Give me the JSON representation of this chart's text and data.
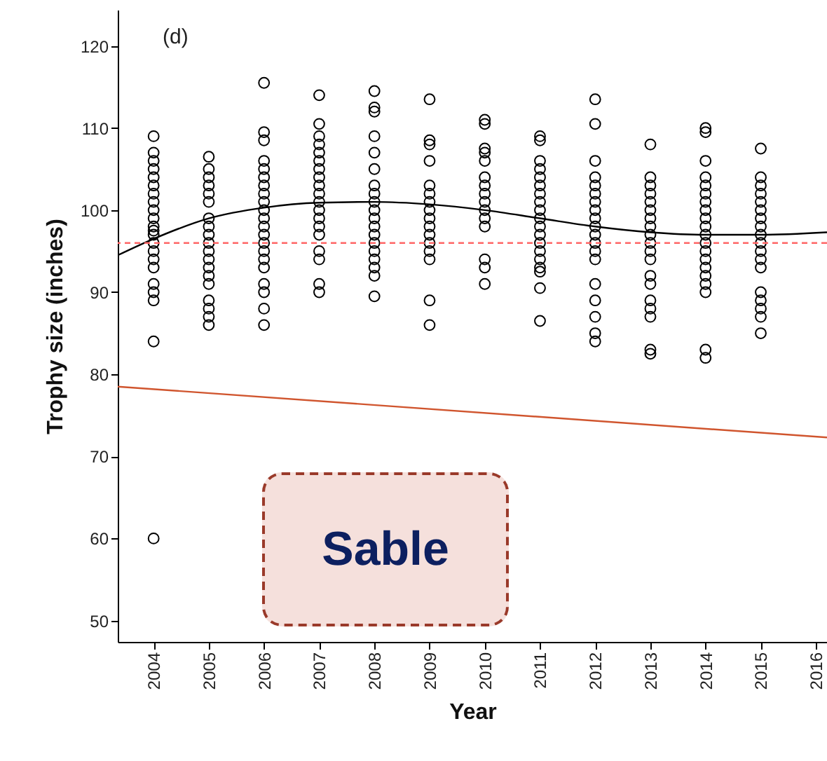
{
  "chart_data": {
    "type": "scatter",
    "xlabel": "Year",
    "ylabel": "Trophy size (inches)",
    "xlim": [
      2003.35,
      2016.2
    ],
    "ylim": [
      47.4,
      124.4
    ],
    "xticks": [
      2004,
      2005,
      2006,
      2007,
      2008,
      2009,
      2010,
      2011,
      2012,
      2013,
      2014,
      2015,
      2016
    ],
    "yticks": [
      50,
      60,
      70,
      80,
      90,
      100,
      110,
      120
    ],
    "grid": false,
    "annotations": [
      "(d)",
      "Sable"
    ],
    "ref_lines": [
      {
        "axis": "y",
        "value": 96,
        "color": "#ff6666",
        "line_style": "dashed"
      }
    ],
    "series": [
      {
        "color": "#000000",
        "marker": "circle",
        "x": [
          2004,
          2004,
          2004,
          2004,
          2004,
          2004,
          2004,
          2004,
          2004,
          2004,
          2004,
          2004,
          2004,
          2004,
          2004,
          2004,
          2004,
          2004,
          2004,
          2004,
          2004,
          2004,
          2005,
          2005,
          2005,
          2005,
          2005,
          2005,
          2005,
          2005,
          2005,
          2005,
          2005,
          2005,
          2005,
          2005,
          2005,
          2005,
          2005,
          2005,
          2005,
          2006,
          2006,
          2006,
          2006,
          2006,
          2006,
          2006,
          2006,
          2006,
          2006,
          2006,
          2006,
          2006,
          2006,
          2006,
          2006,
          2006,
          2006,
          2006,
          2006,
          2006,
          2007,
          2007,
          2007,
          2007,
          2007,
          2007,
          2007,
          2007,
          2007,
          2007,
          2007,
          2007,
          2007,
          2007,
          2007,
          2007,
          2007,
          2007,
          2007,
          2008,
          2008,
          2008,
          2008,
          2008,
          2008,
          2008,
          2008,
          2008,
          2008,
          2008,
          2008,
          2008,
          2008,
          2008,
          2008,
          2008,
          2008,
          2008,
          2009,
          2009,
          2009,
          2009,
          2009,
          2009,
          2009,
          2009,
          2009,
          2009,
          2009,
          2009,
          2009,
          2009,
          2009,
          2009,
          2010,
          2010,
          2010,
          2010,
          2010,
          2010,
          2010,
          2010,
          2010,
          2010,
          2010,
          2010,
          2010,
          2010,
          2010,
          2011,
          2011,
          2011,
          2011,
          2011,
          2011,
          2011,
          2011,
          2011,
          2011,
          2011,
          2011,
          2011,
          2011,
          2011,
          2011,
          2011,
          2011,
          2011,
          2012,
          2012,
          2012,
          2012,
          2012,
          2012,
          2012,
          2012,
          2012,
          2012,
          2012,
          2012,
          2012,
          2012,
          2012,
          2012,
          2012,
          2012,
          2012,
          2013,
          2013,
          2013,
          2013,
          2013,
          2013,
          2013,
          2013,
          2013,
          2013,
          2013,
          2013,
          2013,
          2013,
          2013,
          2013,
          2013,
          2013,
          2013,
          2014,
          2014,
          2014,
          2014,
          2014,
          2014,
          2014,
          2014,
          2014,
          2014,
          2014,
          2014,
          2014,
          2014,
          2014,
          2014,
          2014,
          2014,
          2014,
          2014,
          2015,
          2015,
          2015,
          2015,
          2015,
          2015,
          2015,
          2015,
          2015,
          2015,
          2015,
          2015,
          2015,
          2015,
          2015,
          2015,
          2015,
          2015
        ],
        "values": [
          109,
          107,
          106,
          105,
          104,
          103,
          102,
          101,
          100,
          99,
          98,
          97.5,
          97,
          96,
          95,
          94,
          93,
          91,
          90,
          89,
          84,
          60,
          106.5,
          105,
          104,
          103,
          102,
          101,
          99,
          98,
          97,
          96,
          95,
          94,
          93,
          92,
          91,
          89,
          88,
          87,
          86,
          115.5,
          109.5,
          108.5,
          106,
          105,
          104,
          103,
          102,
          101,
          100,
          99,
          98,
          97,
          96,
          95,
          94,
          93,
          91,
          90,
          88,
          86,
          114,
          110.5,
          109,
          108,
          107,
          106,
          105,
          104,
          103,
          102,
          101,
          100,
          99,
          98,
          97,
          95,
          94,
          91,
          90,
          114.5,
          112.5,
          112,
          109,
          107,
          105,
          103,
          102,
          101,
          100,
          99,
          98,
          97,
          96,
          95,
          94,
          93,
          92,
          89.5,
          113.5,
          108.5,
          108,
          106,
          103,
          102,
          101,
          100,
          99,
          98,
          97,
          96,
          95,
          94,
          89,
          86,
          111,
          110.5,
          107.5,
          107,
          106,
          104,
          103,
          102,
          101,
          100,
          99,
          98,
          94,
          93,
          91,
          109,
          108.5,
          106,
          105,
          104,
          103,
          102,
          101,
          100,
          99,
          98,
          97,
          96,
          95,
          94,
          93,
          92.5,
          90.5,
          86.5,
          113.5,
          110.5,
          106,
          104,
          103,
          102,
          101,
          100,
          99,
          98,
          97,
          96,
          95,
          94,
          91,
          89,
          87,
          85,
          84,
          108,
          104,
          103,
          102,
          101,
          100,
          99,
          98,
          97,
          96,
          95,
          94,
          92,
          91,
          89,
          88,
          87,
          83,
          82.5,
          110,
          109.5,
          106,
          104,
          103,
          102,
          101,
          100,
          99,
          98,
          97,
          96,
          95,
          94,
          93,
          92,
          91,
          90,
          83,
          82,
          107.5,
          104,
          103,
          102,
          101,
          100,
          99,
          98,
          97,
          96,
          95,
          94,
          93,
          90,
          89,
          88,
          87,
          85
        ]
      },
      {
        "type": "line",
        "color": "#000000",
        "x": [
          2003.35,
          2004,
          2005,
          2006,
          2007,
          2008,
          2009,
          2010,
          2011,
          2012,
          2013,
          2014,
          2015,
          2016.2
        ],
        "values": [
          94.5,
          96.5,
          99,
          100.3,
          100.9,
          101,
          100.7,
          100,
          99,
          98,
          97.3,
          97,
          97,
          97.3
        ]
      },
      {
        "type": "line",
        "color": "#d0552e",
        "x": [
          2003.35,
          2016.2
        ],
        "values": [
          78.5,
          72.3
        ]
      }
    ]
  }
}
